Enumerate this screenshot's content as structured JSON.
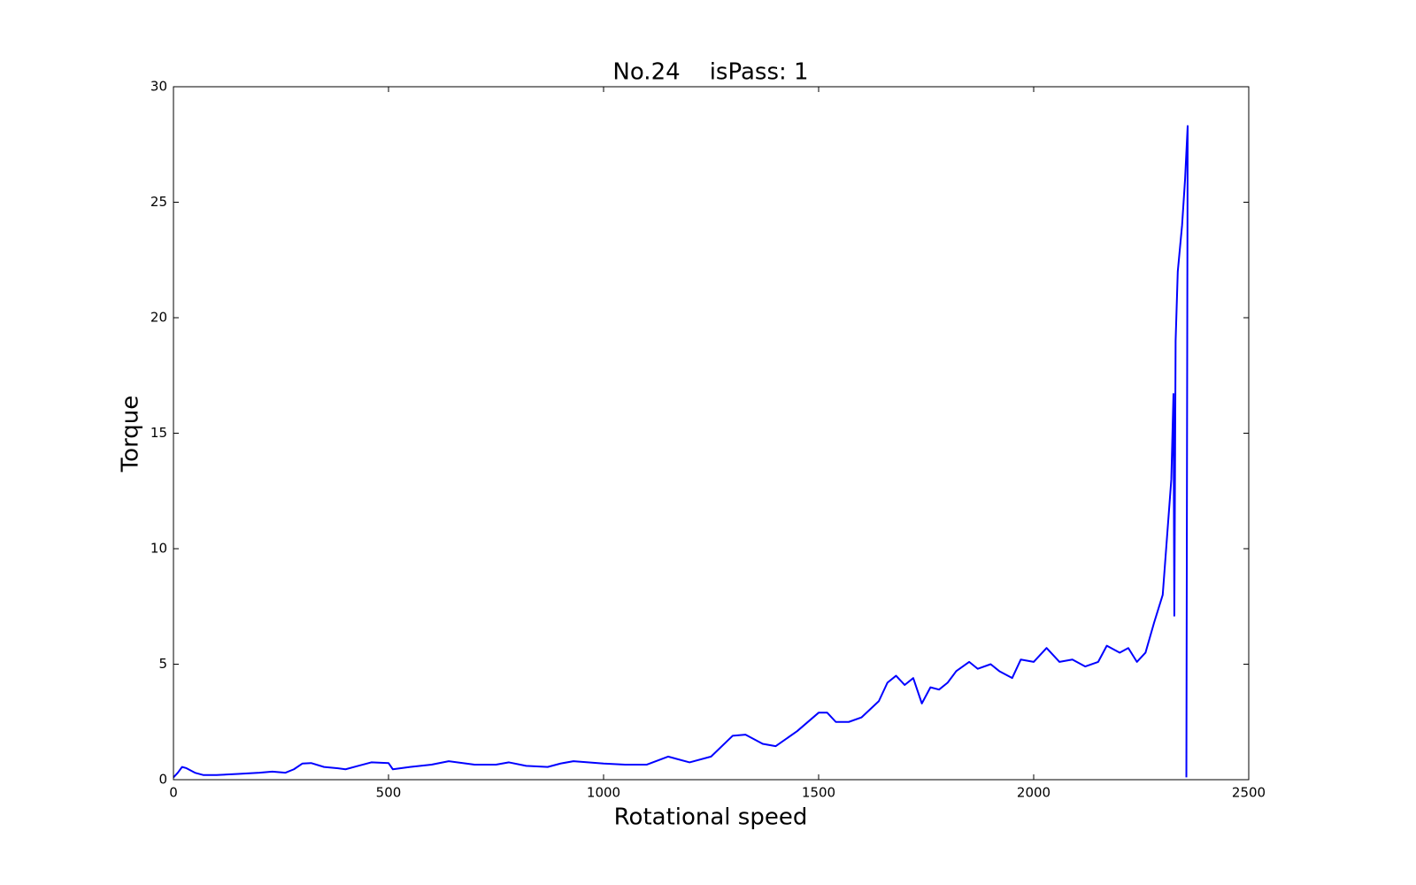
{
  "chart_data": {
    "type": "line",
    "title": "No.24    isPass: 1",
    "x_label": "Rotational speed",
    "y_label": "Torque",
    "x": [
      0,
      10,
      20,
      30,
      50,
      70,
      100,
      150,
      200,
      230,
      260,
      280,
      300,
      320,
      350,
      380,
      400,
      430,
      460,
      500,
      510,
      550,
      600,
      640,
      700,
      750,
      780,
      820,
      870,
      900,
      930,
      1000,
      1050,
      1100,
      1150,
      1200,
      1250,
      1300,
      1330,
      1370,
      1400,
      1450,
      1500,
      1520,
      1540,
      1570,
      1600,
      1640,
      1660,
      1680,
      1700,
      1720,
      1740,
      1760,
      1780,
      1800,
      1820,
      1850,
      1870,
      1900,
      1920,
      1950,
      1970,
      2000,
      2030,
      2060,
      2090,
      2120,
      2150,
      2170,
      2200,
      2220,
      2240,
      2260,
      2280,
      2300,
      2310,
      2320,
      2325,
      2327,
      2330,
      2335,
      2345,
      2352,
      2358,
      2355
    ],
    "values": [
      0.1,
      0.3,
      0.55,
      0.5,
      0.3,
      0.2,
      0.2,
      0.25,
      0.3,
      0.35,
      0.3,
      0.45,
      0.7,
      0.72,
      0.55,
      0.5,
      0.45,
      0.6,
      0.75,
      0.72,
      0.45,
      0.55,
      0.65,
      0.8,
      0.65,
      0.65,
      0.75,
      0.6,
      0.55,
      0.7,
      0.8,
      0.7,
      0.65,
      0.65,
      1.0,
      0.75,
      1.0,
      1.9,
      1.95,
      1.55,
      1.45,
      2.1,
      2.9,
      2.9,
      2.5,
      2.5,
      2.7,
      3.4,
      4.2,
      4.5,
      4.1,
      4.4,
      3.3,
      4.0,
      3.9,
      4.2,
      4.7,
      5.1,
      4.8,
      5.0,
      4.7,
      4.4,
      5.2,
      5.1,
      5.7,
      5.1,
      5.2,
      4.9,
      5.1,
      5.8,
      5.5,
      5.7,
      5.1,
      5.5,
      6.8,
      8.0,
      10.5,
      13,
      16.7,
      7.1,
      19,
      22,
      24,
      26,
      28.3,
      0.1
    ],
    "color": "#0000ff",
    "xlim": [
      0,
      2500
    ],
    "xticks": [
      0,
      500,
      1000,
      1500,
      2000,
      2500
    ],
    "ylim": [
      0,
      30
    ],
    "yticks": [
      0,
      5,
      10,
      15,
      20,
      25,
      30
    ],
    "grid": false
  }
}
